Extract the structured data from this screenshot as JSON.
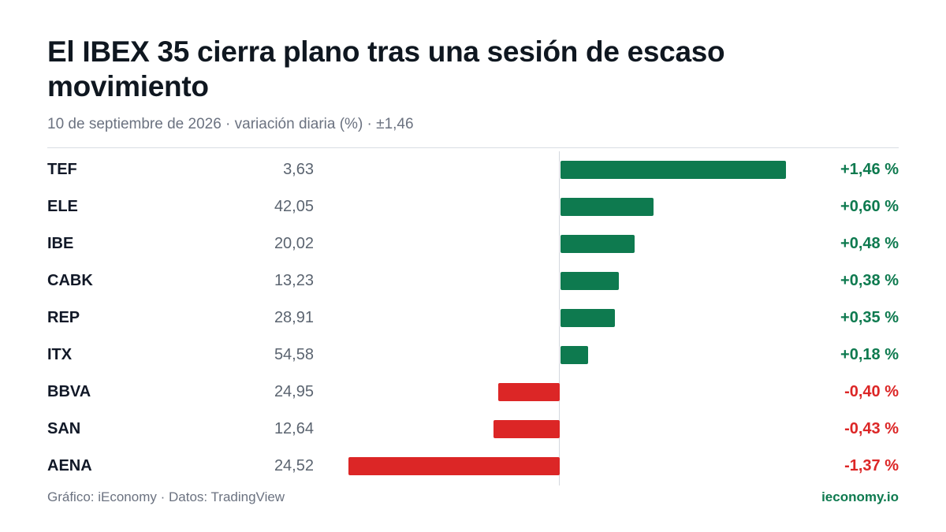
{
  "header": {
    "title": "El IBEX 35 cierra plano tras una sesión de escaso movimiento",
    "subtitle": "10 de septiembre de 2026 · variación diaria (%) · ±1,46"
  },
  "footer": {
    "source": "Gráfico: iEconomy · Datos: TradingView",
    "brand": "ieconomy.io"
  },
  "colors": {
    "positive": "#0e7a4f",
    "negative": "#dc2626"
  },
  "chart_data": {
    "type": "bar",
    "orientation": "horizontal",
    "title": "El IBEX 35 cierra plano tras una sesión de escaso movimiento",
    "subtitle": "10 de septiembre de 2026 · variación diaria (%) · ±1,46",
    "xlim": [
      -1.46,
      1.46
    ],
    "grid": false,
    "categories": [
      "TEF",
      "ELE",
      "IBE",
      "CABK",
      "REP",
      "ITX",
      "BBVA",
      "SAN",
      "AENA"
    ],
    "values": [
      1.46,
      0.6,
      0.48,
      0.38,
      0.35,
      0.18,
      -0.4,
      -0.43,
      -1.37
    ],
    "rows": [
      {
        "ticker": "TEF",
        "price": "3,63",
        "change": 1.46,
        "change_label": "+1,46 %"
      },
      {
        "ticker": "ELE",
        "price": "42,05",
        "change": 0.6,
        "change_label": "+0,60 %"
      },
      {
        "ticker": "IBE",
        "price": "20,02",
        "change": 0.48,
        "change_label": "+0,48 %"
      },
      {
        "ticker": "CABK",
        "price": "13,23",
        "change": 0.38,
        "change_label": "+0,38 %"
      },
      {
        "ticker": "REP",
        "price": "28,91",
        "change": 0.35,
        "change_label": "+0,35 %"
      },
      {
        "ticker": "ITX",
        "price": "54,58",
        "change": 0.18,
        "change_label": "+0,18 %"
      },
      {
        "ticker": "BBVA",
        "price": "24,95",
        "change": -0.4,
        "change_label": "-0,40 %"
      },
      {
        "ticker": "SAN",
        "price": "12,64",
        "change": -0.43,
        "change_label": "-0,43 %"
      },
      {
        "ticker": "AENA",
        "price": "24,52",
        "change": -1.37,
        "change_label": "-1,37 %"
      }
    ]
  }
}
